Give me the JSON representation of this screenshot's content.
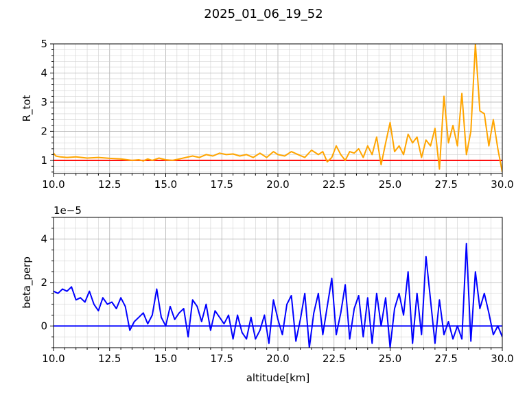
{
  "figure": {
    "title": "2025_01_06_19_52"
  },
  "chart_data": [
    {
      "type": "line",
      "title": "",
      "xlabel": "",
      "ylabel": "R_tot",
      "xlim": [
        10,
        30
      ],
      "ylim": [
        0.55,
        5
      ],
      "xticks": [
        "10.0",
        "12.5",
        "15.0",
        "17.5",
        "20.0",
        "22.5",
        "25.0",
        "27.5",
        "30.0"
      ],
      "yticks": [
        "1",
        "2",
        "3",
        "4",
        "5"
      ],
      "grid": "major and minor",
      "reference_line": {
        "y": 1,
        "color": "#ff0000"
      },
      "series": [
        {
          "color": "#ffa500",
          "x": [
            10.0,
            10.1,
            10.3,
            10.6,
            11.0,
            11.5,
            12.0,
            12.5,
            13.0,
            13.5,
            13.8,
            14.0,
            14.2,
            14.4,
            14.7,
            15.0,
            15.3,
            15.6,
            15.9,
            16.2,
            16.5,
            16.8,
            17.1,
            17.4,
            17.7,
            18.0,
            18.3,
            18.6,
            18.9,
            19.2,
            19.5,
            19.8,
            20.0,
            20.3,
            20.6,
            20.9,
            21.2,
            21.5,
            21.8,
            22.0,
            22.2,
            22.4,
            22.6,
            22.8,
            23.0,
            23.2,
            23.4,
            23.6,
            23.8,
            24.0,
            24.2,
            24.4,
            24.6,
            24.8,
            25.0,
            25.2,
            25.4,
            25.6,
            25.8,
            26.0,
            26.2,
            26.4,
            26.6,
            26.8,
            27.0,
            27.2,
            27.4,
            27.6,
            27.8,
            28.0,
            28.2,
            28.4,
            28.6,
            28.8,
            29.0,
            29.2,
            29.4,
            29.6,
            29.8,
            30.0
          ],
          "y": [
            1.25,
            1.15,
            1.12,
            1.1,
            1.12,
            1.08,
            1.1,
            1.07,
            1.05,
            1.0,
            1.02,
            0.98,
            1.05,
            1.0,
            1.08,
            1.02,
            1.0,
            1.05,
            1.1,
            1.15,
            1.1,
            1.2,
            1.15,
            1.25,
            1.2,
            1.22,
            1.15,
            1.2,
            1.1,
            1.25,
            1.1,
            1.3,
            1.2,
            1.15,
            1.3,
            1.2,
            1.1,
            1.35,
            1.2,
            1.3,
            0.95,
            1.1,
            1.5,
            1.2,
            1.0,
            1.3,
            1.25,
            1.4,
            1.1,
            1.5,
            1.2,
            1.8,
            0.85,
            1.6,
            2.3,
            1.3,
            1.5,
            1.2,
            1.9,
            1.6,
            1.8,
            1.1,
            1.7,
            1.5,
            2.1,
            0.7,
            3.2,
            1.6,
            2.2,
            1.5,
            3.3,
            1.2,
            2.0,
            5.0,
            2.7,
            2.6,
            1.5,
            2.4,
            1.4,
            0.6
          ]
        }
      ]
    },
    {
      "type": "line",
      "title": "",
      "xlabel": "altitude[km]",
      "ylabel": "beta_perp",
      "scale_label": "1e−5",
      "xlim": [
        10,
        30
      ],
      "ylim": [
        -1.0,
        5.0
      ],
      "xticks": [
        "10.0",
        "12.5",
        "15.0",
        "17.5",
        "20.0",
        "22.5",
        "25.0",
        "27.5",
        "30.0"
      ],
      "yticks": [
        "0",
        "2",
        "4"
      ],
      "grid": "major and minor",
      "reference_line": {
        "y": 0,
        "color": "#0000ff"
      },
      "series": [
        {
          "color": "#0000ff",
          "x": [
            10.0,
            10.2,
            10.4,
            10.6,
            10.8,
            11.0,
            11.2,
            11.4,
            11.6,
            11.8,
            12.0,
            12.2,
            12.4,
            12.6,
            12.8,
            13.0,
            13.2,
            13.4,
            13.6,
            13.8,
            14.0,
            14.2,
            14.4,
            14.6,
            14.8,
            15.0,
            15.2,
            15.4,
            15.6,
            15.8,
            16.0,
            16.2,
            16.4,
            16.6,
            16.8,
            17.0,
            17.2,
            17.4,
            17.6,
            17.8,
            18.0,
            18.2,
            18.4,
            18.6,
            18.8,
            19.0,
            19.2,
            19.4,
            19.6,
            19.8,
            20.0,
            20.2,
            20.4,
            20.6,
            20.8,
            21.0,
            21.2,
            21.4,
            21.6,
            21.8,
            22.0,
            22.2,
            22.4,
            22.6,
            22.8,
            23.0,
            23.2,
            23.4,
            23.6,
            23.8,
            24.0,
            24.2,
            24.4,
            24.6,
            24.8,
            25.0,
            25.2,
            25.4,
            25.6,
            25.8,
            26.0,
            26.2,
            26.4,
            26.6,
            26.8,
            27.0,
            27.2,
            27.4,
            27.6,
            27.8,
            28.0,
            28.2,
            28.4,
            28.6,
            28.8,
            29.0,
            29.2,
            29.4,
            29.6,
            29.8,
            30.0
          ],
          "y": [
            1.6,
            1.5,
            1.7,
            1.6,
            1.8,
            1.2,
            1.3,
            1.1,
            1.6,
            1.0,
            0.7,
            1.3,
            1.0,
            1.1,
            0.8,
            1.3,
            0.9,
            -0.2,
            0.2,
            0.4,
            0.6,
            0.1,
            0.5,
            1.7,
            0.4,
            0.0,
            0.9,
            0.3,
            0.6,
            0.8,
            -0.5,
            1.2,
            0.9,
            0.2,
            1.0,
            -0.2,
            0.7,
            0.4,
            0.1,
            0.5,
            -0.6,
            0.5,
            -0.3,
            -0.6,
            0.4,
            -0.6,
            -0.2,
            0.5,
            -0.8,
            1.2,
            0.3,
            -0.4,
            1.0,
            1.4,
            -0.7,
            0.3,
            1.5,
            -1.0,
            0.6,
            1.5,
            -0.4,
            0.9,
            2.2,
            -0.4,
            0.6,
            1.9,
            -0.6,
            0.8,
            1.4,
            -0.5,
            1.3,
            -0.8,
            1.5,
            0.0,
            1.3,
            -1.0,
            0.8,
            1.5,
            0.5,
            2.5,
            -0.8,
            1.5,
            -0.4,
            3.2,
            1.2,
            -0.8,
            1.2,
            -0.4,
            0.2,
            -0.6,
            0.0,
            -0.6,
            3.8,
            -0.7,
            2.5,
            0.8,
            1.5,
            0.6,
            -0.4,
            0.0,
            -0.5
          ]
        }
      ]
    }
  ]
}
